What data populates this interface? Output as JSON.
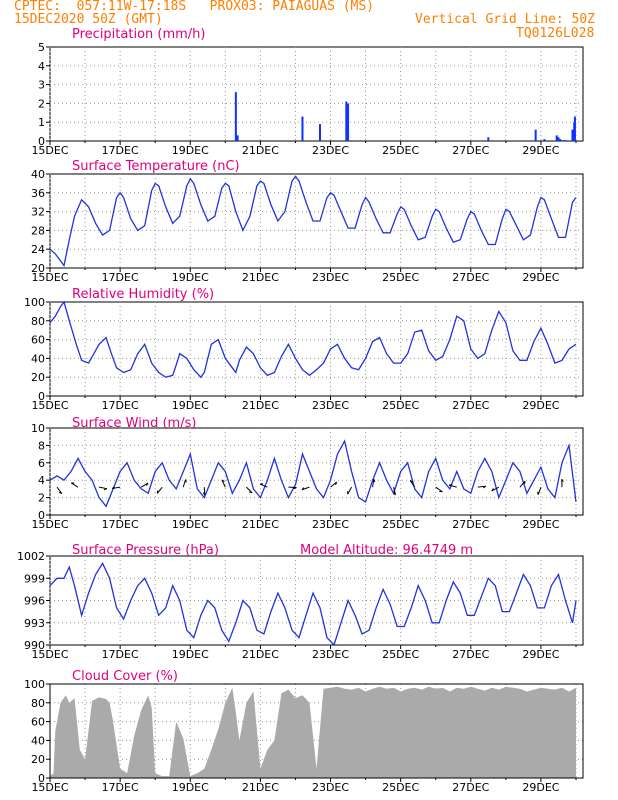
{
  "header": {
    "line1": "CPTEC:  057:11W-17:18S   PROX03: PAIAGUAS (MS)",
    "line2": "15DEC2020 50Z (GMT)",
    "vgrid": "Vertical Grid Line: 50Z",
    "code": "TQ0126L028"
  },
  "model_altitude": "Model Altitude: 96.4749 m",
  "day_labels": [
    "15DEC",
    "17DEC",
    "19DEC",
    "21DEC",
    "23DEC",
    "25DEC",
    "27DEC",
    "29DEC"
  ],
  "colors": {
    "header": "#ff7f00",
    "title": "#e0007f",
    "line": "#2233dd",
    "bar": "#1030ff",
    "cloud": "#aaaaaa"
  },
  "chart_data": [
    {
      "id": "precip",
      "type": "bar",
      "title": "Precipitation (mm/h)",
      "ylim": [
        0,
        5
      ],
      "yticks": [
        0,
        1,
        2,
        3,
        4,
        5
      ],
      "x_unit": "day offset from 15DEC 00Z",
      "x": [
        5.3,
        5.35,
        7.2,
        7.7,
        8.45,
        8.5,
        12.5,
        13.85,
        14.1,
        14.45,
        14.5,
        14.55,
        14.62,
        14.7,
        14.9,
        14.95,
        14.97
      ],
      "values": [
        2.6,
        0.3,
        1.3,
        0.9,
        2.1,
        2.0,
        0.2,
        0.6,
        0.1,
        0.3,
        0.2,
        0.1,
        0.05,
        0.05,
        0.6,
        1.0,
        1.3
      ]
    },
    {
      "id": "temp",
      "type": "line",
      "title": "Surface Temperature (nC)",
      "ylim": [
        20,
        40
      ],
      "yticks": [
        20,
        24,
        28,
        32,
        36,
        40
      ],
      "x": [
        0,
        0.15,
        0.3,
        0.4,
        0.55,
        0.7,
        0.9,
        1.1,
        1.3,
        1.5,
        1.7,
        1.9,
        2.0,
        2.1,
        2.3,
        2.5,
        2.7,
        2.9,
        3.0,
        3.1,
        3.3,
        3.5,
        3.7,
        3.9,
        4.0,
        4.1,
        4.3,
        4.5,
        4.7,
        4.9,
        5.0,
        5.1,
        5.3,
        5.5,
        5.7,
        5.9,
        6.0,
        6.1,
        6.3,
        6.5,
        6.7,
        6.9,
        7.0,
        7.1,
        7.3,
        7.5,
        7.7,
        7.9,
        8.0,
        8.1,
        8.3,
        8.5,
        8.7,
        8.9,
        9.0,
        9.1,
        9.3,
        9.5,
        9.7,
        9.9,
        10.0,
        10.1,
        10.3,
        10.5,
        10.7,
        10.9,
        11.0,
        11.1,
        11.3,
        11.5,
        11.7,
        11.9,
        12.0,
        12.1,
        12.3,
        12.5,
        12.7,
        12.9,
        13.0,
        13.1,
        13.3,
        13.5,
        13.7,
        13.9,
        14.0,
        14.1,
        14.3,
        14.5,
        14.7,
        14.9,
        15.0
      ],
      "values": [
        24,
        23,
        21.5,
        20.5,
        26,
        31,
        34.5,
        33,
        29.5,
        27,
        28,
        35,
        36,
        35,
        30.5,
        28,
        29,
        36.5,
        38,
        37.5,
        33,
        29.5,
        31,
        37.5,
        39,
        38,
        33.5,
        30,
        31,
        37,
        38,
        37.5,
        32,
        28,
        31,
        37.5,
        38.5,
        38,
        33.5,
        30,
        32,
        38.5,
        39.5,
        38.5,
        34,
        30,
        30,
        35,
        36,
        35.5,
        32,
        28.5,
        28.5,
        33.5,
        35,
        34,
        30.5,
        27.5,
        27.5,
        31.5,
        33,
        32.5,
        29,
        26,
        26.5,
        31,
        32.5,
        32,
        28.5,
        25.5,
        26,
        30.5,
        32,
        31.5,
        28,
        25,
        25,
        30.5,
        32.5,
        32,
        29,
        26,
        27,
        33,
        35,
        34.5,
        30.5,
        26.5,
        26.5,
        34,
        35
      ]
    },
    {
      "id": "rh",
      "type": "line",
      "title": "Relative Humidity (%)",
      "ylim": [
        0,
        100
      ],
      "yticks": [
        0,
        20,
        40,
        60,
        80,
        100
      ],
      "x": [
        0,
        0.15,
        0.3,
        0.4,
        0.55,
        0.75,
        0.9,
        1.1,
        1.4,
        1.6,
        1.75,
        1.9,
        2.1,
        2.3,
        2.5,
        2.7,
        2.9,
        3.1,
        3.3,
        3.5,
        3.6,
        3.7,
        3.9,
        4.1,
        4.3,
        4.4,
        4.6,
        4.8,
        5.0,
        5.2,
        5.3,
        5.4,
        5.6,
        5.8,
        6.0,
        6.2,
        6.4,
        6.6,
        6.8,
        7.0,
        7.2,
        7.4,
        7.6,
        7.8,
        8.0,
        8.2,
        8.4,
        8.6,
        8.8,
        9.0,
        9.2,
        9.4,
        9.6,
        9.8,
        10.0,
        10.2,
        10.4,
        10.6,
        10.8,
        11.0,
        11.2,
        11.4,
        11.6,
        11.8,
        12.0,
        12.2,
        12.4,
        12.6,
        12.8,
        13.0,
        13.2,
        13.4,
        13.6,
        13.8,
        14.0,
        14.2,
        14.4,
        14.6,
        14.8,
        15.0
      ],
      "values": [
        78,
        85,
        95,
        100,
        80,
        55,
        38,
        35,
        55,
        62,
        45,
        30,
        25,
        28,
        45,
        55,
        35,
        25,
        20,
        22,
        33,
        45,
        40,
        28,
        20,
        25,
        55,
        60,
        40,
        30,
        25,
        38,
        52,
        45,
        30,
        22,
        25,
        42,
        55,
        40,
        28,
        22,
        28,
        35,
        50,
        55,
        40,
        30,
        28,
        40,
        58,
        62,
        45,
        35,
        35,
        45,
        68,
        70,
        48,
        38,
        42,
        60,
        85,
        80,
        50,
        40,
        45,
        70,
        90,
        78,
        48,
        38,
        38,
        58,
        72,
        55,
        35,
        38,
        50,
        55
      ]
    },
    {
      "id": "wind",
      "type": "line",
      "title": "Surface Wind (m/s)",
      "ylim": [
        0,
        10
      ],
      "yticks": [
        0,
        2,
        4,
        6,
        8,
        10
      ],
      "x": [
        0,
        0.2,
        0.4,
        0.6,
        0.8,
        1.0,
        1.2,
        1.4,
        1.6,
        1.8,
        2.0,
        2.2,
        2.4,
        2.6,
        2.8,
        3.0,
        3.2,
        3.4,
        3.6,
        3.8,
        4.0,
        4.2,
        4.4,
        4.6,
        4.8,
        5.0,
        5.2,
        5.4,
        5.6,
        5.8,
        6.0,
        6.2,
        6.4,
        6.6,
        6.8,
        7.0,
        7.2,
        7.4,
        7.6,
        7.8,
        8.0,
        8.2,
        8.4,
        8.6,
        8.8,
        9.0,
        9.2,
        9.4,
        9.6,
        9.8,
        10.0,
        10.2,
        10.4,
        10.6,
        10.8,
        11.0,
        11.2,
        11.4,
        11.6,
        11.8,
        12.0,
        12.2,
        12.4,
        12.6,
        12.8,
        13.0,
        13.2,
        13.4,
        13.6,
        13.8,
        14.0,
        14.2,
        14.4,
        14.6,
        14.8,
        15.0
      ],
      "values": [
        4,
        4.5,
        4,
        5,
        6.5,
        5,
        4,
        2,
        1,
        3,
        5,
        6,
        4,
        3,
        2.5,
        5,
        6,
        4,
        3,
        5,
        7,
        3,
        2,
        4,
        6,
        5,
        2.5,
        4,
        6,
        3,
        2,
        4,
        6.5,
        4,
        2,
        3.5,
        7,
        5,
        3,
        2,
        4,
        7,
        8.5,
        5,
        2,
        1.5,
        4,
        6,
        4,
        2.5,
        5,
        6,
        3,
        2,
        5,
        6.5,
        4,
        3,
        5,
        3,
        2.5,
        5,
        6.5,
        5,
        2,
        4,
        6,
        5,
        2.5,
        4,
        5.5,
        3,
        2,
        6,
        8,
        1.5
      ]
    },
    {
      "id": "pres",
      "type": "line",
      "title": "Surface Pressure (hPa)",
      "ylim": [
        990,
        1002
      ],
      "yticks": [
        990,
        993,
        996,
        999,
        1002
      ],
      "x": [
        0,
        0.2,
        0.4,
        0.55,
        0.7,
        0.9,
        1.1,
        1.3,
        1.5,
        1.7,
        1.9,
        2.1,
        2.3,
        2.5,
        2.7,
        2.9,
        3.1,
        3.3,
        3.5,
        3.7,
        3.9,
        4.1,
        4.3,
        4.5,
        4.7,
        4.9,
        5.1,
        5.3,
        5.5,
        5.7,
        5.9,
        6.1,
        6.3,
        6.5,
        6.7,
        6.9,
        7.1,
        7.3,
        7.5,
        7.7,
        7.9,
        8.1,
        8.3,
        8.5,
        8.7,
        8.9,
        9.1,
        9.3,
        9.5,
        9.7,
        9.9,
        10.1,
        10.3,
        10.5,
        10.7,
        10.9,
        11.1,
        11.3,
        11.5,
        11.7,
        11.9,
        12.1,
        12.3,
        12.5,
        12.7,
        12.9,
        13.1,
        13.3,
        13.5,
        13.7,
        13.9,
        14.1,
        14.3,
        14.5,
        14.7,
        14.9,
        15.0
      ],
      "values": [
        998,
        999,
        999,
        1000.5,
        998,
        994,
        997,
        999.5,
        1001,
        999,
        995,
        993.5,
        996,
        998,
        999,
        997,
        994,
        995,
        998,
        996,
        992,
        991,
        994,
        996,
        995,
        992,
        990.5,
        993,
        996,
        995,
        992,
        991.5,
        994.5,
        997,
        995,
        992,
        991,
        994,
        997,
        995,
        991,
        990,
        993,
        996,
        994,
        991.5,
        992,
        995,
        997.5,
        995.5,
        992.5,
        992.5,
        995,
        998,
        996,
        993,
        993,
        996,
        998.5,
        997,
        994,
        994,
        996.5,
        999,
        998,
        994.5,
        994.5,
        997,
        999.5,
        998,
        995,
        995,
        998,
        999.5,
        996,
        993,
        996
      ]
    },
    {
      "id": "cloud",
      "type": "area",
      "title": "Cloud Cover (%)",
      "ylim": [
        0,
        100
      ],
      "yticks": [
        0,
        20,
        40,
        60,
        80,
        100
      ],
      "x": [
        0,
        0.1,
        0.15,
        0.3,
        0.45,
        0.55,
        0.7,
        0.85,
        1.0,
        1.2,
        1.4,
        1.6,
        1.7,
        1.8,
        2.0,
        2.2,
        2.4,
        2.6,
        2.8,
        2.9,
        3.0,
        3.2,
        3.4,
        3.6,
        3.8,
        4.0,
        4.2,
        4.4,
        4.6,
        4.8,
        5.0,
        5.2,
        5.3,
        5.4,
        5.6,
        5.8,
        6.0,
        6.2,
        6.4,
        6.6,
        6.8,
        7.0,
        7.2,
        7.4,
        7.6,
        7.8,
        8.0,
        8.2,
        8.4,
        8.6,
        8.8,
        9.0,
        9.2,
        9.4,
        9.6,
        9.8,
        10.0,
        10.2,
        10.4,
        10.6,
        10.8,
        11.0,
        11.2,
        11.4,
        11.6,
        11.8,
        12.0,
        12.2,
        12.4,
        12.6,
        12.8,
        13.0,
        13.2,
        13.4,
        13.6,
        13.8,
        14.0,
        14.2,
        14.4,
        14.6,
        14.8,
        15.0
      ],
      "values": [
        2,
        5,
        50,
        80,
        88,
        80,
        85,
        30,
        20,
        82,
        86,
        84,
        80,
        60,
        10,
        5,
        45,
        72,
        88,
        75,
        5,
        2,
        2,
        60,
        42,
        2,
        5,
        10,
        30,
        52,
        80,
        96,
        70,
        40,
        80,
        92,
        10,
        30,
        40,
        90,
        94,
        85,
        88,
        80,
        10,
        95,
        96,
        97,
        95,
        94,
        96,
        92,
        95,
        97,
        95,
        96,
        92,
        95,
        96,
        94,
        97,
        95,
        96,
        92,
        96,
        95,
        97,
        95,
        93,
        96,
        94,
        97,
        96,
        95,
        92,
        94,
        96,
        95,
        94,
        96,
        92,
        96
      ]
    }
  ]
}
